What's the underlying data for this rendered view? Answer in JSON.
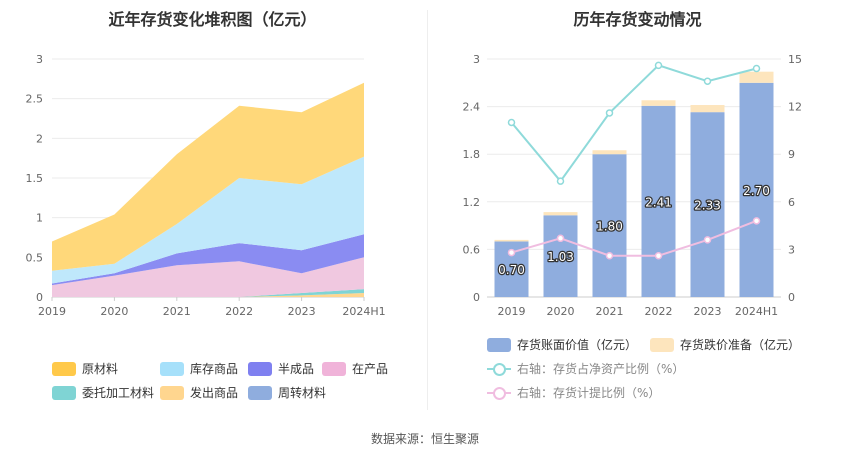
{
  "left_chart": {
    "title": "近年存货变化堆积图（亿元）",
    "legend": [
      {
        "label": "原材料",
        "color": "#ffc94a"
      },
      {
        "label": "库存商品",
        "color": "#a6e0fa"
      },
      {
        "label": "半成品",
        "color": "#7f80f0"
      },
      {
        "label": "在产品",
        "color": "#f0b3d9"
      },
      {
        "label": "委托加工材料",
        "color": "#7fd4d4"
      },
      {
        "label": "发出商品",
        "color": "#ffd68f"
      },
      {
        "label": "周转材料",
        "color": "#8fadde"
      }
    ]
  },
  "right_chart": {
    "title": "历年存货变动情况",
    "legend": [
      {
        "label": "存货账面价值（亿元）",
        "color": "#8fadde",
        "kind": "bar"
      },
      {
        "label": "存货跌价准备（亿元）",
        "color": "#fde5bd",
        "kind": "bar"
      },
      {
        "label": "右轴：存货占净资产比例（%）",
        "color": "#8fdada",
        "kind": "line"
      },
      {
        "label": "右轴：存货计提比例（%）",
        "color": "#f0bde0",
        "kind": "line"
      }
    ]
  },
  "source": "数据来源：恒生聚源",
  "chart_data": [
    {
      "type": "area",
      "stacked": true,
      "title": "近年存货变化堆积图（亿元）",
      "categories": [
        "2019",
        "2020",
        "2021",
        "2022",
        "2023",
        "2024H1"
      ],
      "ylim": [
        0,
        3
      ],
      "yticks": [
        0,
        0.5,
        1,
        1.5,
        2,
        2.5,
        3
      ],
      "grid": true,
      "legend_position": "bottom",
      "series": [
        {
          "name": "周转材料",
          "color": "#8fadde",
          "values": [
            0.0,
            0.0,
            0.0,
            0.0,
            0.0,
            0.0
          ]
        },
        {
          "name": "发出商品",
          "color": "#ffd68f",
          "values": [
            0.0,
            0.0,
            0.0,
            0.0,
            0.02,
            0.05
          ]
        },
        {
          "name": "委托加工材料",
          "color": "#7fd4d4",
          "values": [
            0.0,
            0.0,
            0.0,
            0.0,
            0.03,
            0.05
          ]
        },
        {
          "name": "在产品",
          "color": "#f0c8e0",
          "values": [
            0.15,
            0.27,
            0.4,
            0.45,
            0.25,
            0.4
          ]
        },
        {
          "name": "半成品",
          "color": "#8a8cf2",
          "values": [
            0.02,
            0.03,
            0.15,
            0.23,
            0.29,
            0.29
          ]
        },
        {
          "name": "库存商品",
          "color": "#bfe8fb",
          "values": [
            0.16,
            0.12,
            0.37,
            0.82,
            0.83,
            0.98
          ]
        },
        {
          "name": "原材料",
          "color": "#ffd87a",
          "values": [
            0.37,
            0.62,
            0.88,
            0.91,
            0.91,
            0.93
          ]
        }
      ]
    },
    {
      "type": "bar",
      "stacked": true,
      "title": "历年存货变动情况",
      "categories": [
        "2019",
        "2020",
        "2021",
        "2022",
        "2023",
        "2024H1"
      ],
      "ylim": [
        0,
        3
      ],
      "yticks": [
        0,
        0.6,
        1.2,
        1.8,
        2.4,
        3
      ],
      "y2lim": [
        0,
        15
      ],
      "y2ticks": [
        0,
        3,
        6,
        9,
        12,
        15
      ],
      "grid": true,
      "legend_position": "bottom",
      "series": [
        {
          "name": "存货账面价值（亿元）",
          "type": "bar",
          "axis": "left",
          "color": "#8fadde",
          "values": [
            0.7,
            1.03,
            1.8,
            2.41,
            2.33,
            2.7
          ],
          "labels": [
            "0.70",
            "1.03",
            "1.80",
            "2.41",
            "2.33",
            "2.70"
          ]
        },
        {
          "name": "存货跌价准备（亿元）",
          "type": "bar",
          "axis": "left",
          "color": "#fde5bd",
          "values": [
            0.02,
            0.04,
            0.05,
            0.07,
            0.09,
            0.14
          ]
        },
        {
          "name": "右轴：存货占净资产比例（%）",
          "type": "line",
          "axis": "right",
          "color": "#8fdada",
          "values": [
            11.0,
            7.3,
            11.6,
            14.6,
            13.6,
            14.4
          ]
        },
        {
          "name": "右轴：存货计提比例（%）",
          "type": "line",
          "axis": "right",
          "color": "#f0bde0",
          "values": [
            2.8,
            3.7,
            2.6,
            2.6,
            3.6,
            4.8
          ]
        }
      ]
    }
  ]
}
